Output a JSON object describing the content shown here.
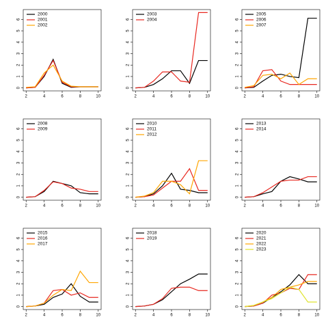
{
  "chart_data": [
    {
      "type": "line",
      "x": [
        2,
        3,
        4,
        5,
        6,
        7,
        8,
        9,
        10
      ],
      "xlim": [
        1.68,
        10.32
      ],
      "ylim": [
        -0.26,
        6.86
      ],
      "xticks": [
        2,
        4,
        6,
        8,
        10
      ],
      "yticks": [
        0,
        1,
        2,
        3,
        4,
        5,
        6
      ],
      "legend": "top-left",
      "series": [
        {
          "name": "2000",
          "color": "#000000",
          "values": [
            0,
            0.05,
            1,
            2.5,
            0.4,
            0.05,
            0.1,
            0.1,
            0.1
          ]
        },
        {
          "name": "2001",
          "color": "#e8271f",
          "values": [
            0,
            0.05,
            1.1,
            2.4,
            0.5,
            0.1,
            0.1,
            0.1,
            0.1
          ]
        },
        {
          "name": "2002",
          "color": "#ffa500",
          "values": [
            0.05,
            0.1,
            1.3,
            2.0,
            0.6,
            0.15,
            0.1,
            0.1,
            0.1
          ]
        }
      ]
    },
    {
      "type": "line",
      "x": [
        2,
        3,
        4,
        5,
        6,
        7,
        8,
        9,
        10
      ],
      "xlim": [
        1.68,
        10.32
      ],
      "ylim": [
        -0.26,
        6.86
      ],
      "xticks": [
        2,
        4,
        6,
        8,
        10
      ],
      "yticks": [
        0,
        1,
        2,
        3,
        4,
        5,
        6
      ],
      "legend": "top-left",
      "series": [
        {
          "name": "2003",
          "color": "#000000",
          "values": [
            0,
            0.05,
            0.3,
            0.8,
            1.5,
            1.5,
            0.4,
            2.4,
            2.4
          ]
        },
        {
          "name": "2004",
          "color": "#e8271f",
          "values": [
            0,
            0.05,
            0.6,
            1.4,
            1.4,
            0.6,
            0.5,
            6.6,
            6.6
          ]
        }
      ]
    },
    {
      "type": "line",
      "x": [
        2,
        3,
        4,
        5,
        6,
        7,
        8,
        9,
        10
      ],
      "xlim": [
        1.68,
        10.32
      ],
      "ylim": [
        -0.26,
        6.86
      ],
      "xticks": [
        2,
        4,
        6,
        8,
        10
      ],
      "yticks": [
        0,
        1,
        2,
        3,
        4,
        5,
        6
      ],
      "legend": "top-left",
      "series": [
        {
          "name": "2005",
          "color": "#000000",
          "values": [
            0,
            0.05,
            0.6,
            1.1,
            1.2,
            1.0,
            0.9,
            6.1,
            6.1
          ]
        },
        {
          "name": "2006",
          "color": "#e8271f",
          "values": [
            0,
            0.1,
            1.5,
            1.6,
            0.6,
            0.3,
            0.3,
            0.3,
            0.3
          ]
        },
        {
          "name": "2007",
          "color": "#ffa500",
          "values": [
            0.05,
            0.2,
            1.1,
            1.2,
            0.8,
            1.3,
            0.3,
            0.8,
            0.8
          ]
        }
      ]
    },
    {
      "type": "line",
      "x": [
        2,
        3,
        4,
        5,
        6,
        7,
        8,
        9,
        10
      ],
      "xlim": [
        1.68,
        10.32
      ],
      "ylim": [
        -0.26,
        6.86
      ],
      "xticks": [
        2,
        4,
        6,
        8,
        10
      ],
      "yticks": [
        0,
        1,
        2,
        3,
        4,
        5,
        6
      ],
      "legend": "top-left",
      "series": [
        {
          "name": "2008",
          "color": "#000000",
          "values": [
            0,
            0.05,
            0.5,
            1.4,
            1.2,
            1.0,
            0.4,
            0.3,
            0.3
          ]
        },
        {
          "name": "2009",
          "color": "#e8271f",
          "values": [
            0,
            0.05,
            0.6,
            1.35,
            1.2,
            0.8,
            0.7,
            0.5,
            0.5
          ]
        }
      ]
    },
    {
      "type": "line",
      "x": [
        2,
        3,
        4,
        5,
        6,
        7,
        8,
        9,
        10
      ],
      "xlim": [
        1.68,
        10.32
      ],
      "ylim": [
        -0.26,
        6.86
      ],
      "xticks": [
        2,
        4,
        6,
        8,
        10
      ],
      "yticks": [
        0,
        1,
        2,
        3,
        4,
        5,
        6
      ],
      "legend": "top-left",
      "series": [
        {
          "name": "2010",
          "color": "#000000",
          "values": [
            0,
            0.05,
            0.3,
            1.0,
            2.1,
            0.7,
            0.6,
            0.4,
            0.4
          ]
        },
        {
          "name": "2011",
          "color": "#e8271f",
          "values": [
            0,
            0.05,
            0.2,
            0.8,
            1.4,
            1.4,
            2.5,
            0.6,
            0.6
          ]
        },
        {
          "name": "2012",
          "color": "#ffa500",
          "values": [
            0,
            0.1,
            0.4,
            1.4,
            1.4,
            1.1,
            0.3,
            3.2,
            3.2
          ]
        }
      ]
    },
    {
      "type": "line",
      "x": [
        2,
        3,
        4,
        5,
        6,
        7,
        8,
        9,
        10
      ],
      "xlim": [
        1.68,
        10.32
      ],
      "ylim": [
        -0.26,
        6.86
      ],
      "xticks": [
        2,
        4,
        6,
        8,
        10
      ],
      "yticks": [
        0,
        1,
        2,
        3,
        4,
        5,
        6
      ],
      "legend": "top-left",
      "series": [
        {
          "name": "2013",
          "color": "#000000",
          "values": [
            0,
            0.05,
            0.3,
            0.5,
            1.4,
            1.8,
            1.6,
            1.35,
            1.35
          ]
        },
        {
          "name": "2014",
          "color": "#e8271f",
          "values": [
            0,
            0.05,
            0.4,
            0.9,
            1.4,
            1.5,
            1.5,
            1.8,
            1.8
          ]
        }
      ]
    },
    {
      "type": "line",
      "x": [
        2,
        3,
        4,
        5,
        6,
        7,
        8,
        9,
        10
      ],
      "xlim": [
        1.68,
        10.32
      ],
      "ylim": [
        -0.26,
        6.86
      ],
      "xticks": [
        2,
        4,
        6,
        8,
        10
      ],
      "yticks": [
        0,
        1,
        2,
        3,
        4,
        5,
        6
      ],
      "legend": "top-left",
      "series": [
        {
          "name": "2015",
          "color": "#000000",
          "values": [
            0,
            0.05,
            0.2,
            0.8,
            1.1,
            2.0,
            0.9,
            0.4,
            0.4
          ]
        },
        {
          "name": "2016",
          "color": "#e8271f",
          "values": [
            0,
            0.05,
            0.3,
            1.4,
            1.5,
            1.0,
            1.2,
            0.8,
            0.8
          ]
        },
        {
          "name": "2017",
          "color": "#ffa500",
          "values": [
            0,
            0.05,
            0.3,
            1.0,
            1.5,
            1.4,
            3.1,
            2.1,
            2.1
          ]
        }
      ]
    },
    {
      "type": "line",
      "x": [
        2,
        3,
        4,
        5,
        6,
        7,
        8,
        9,
        10
      ],
      "xlim": [
        1.68,
        10.32
      ],
      "ylim": [
        -0.26,
        6.86
      ],
      "xticks": [
        2,
        4,
        6,
        8,
        10
      ],
      "yticks": [
        0,
        1,
        2,
        3,
        4,
        5,
        6
      ],
      "legend": "top-left",
      "series": [
        {
          "name": "2018",
          "color": "#000000",
          "values": [
            0,
            0.05,
            0.2,
            0.6,
            1.3,
            2.0,
            2.4,
            2.85,
            2.85
          ]
        },
        {
          "name": "2019",
          "color": "#e8271f",
          "values": [
            0,
            0.05,
            0.2,
            0.7,
            1.6,
            1.7,
            1.7,
            1.4,
            1.4
          ]
        }
      ]
    },
    {
      "type": "line",
      "x": [
        2,
        3,
        4,
        5,
        6,
        7,
        8,
        9,
        10
      ],
      "xlim": [
        1.68,
        10.32
      ],
      "ylim": [
        -0.26,
        6.86
      ],
      "xticks": [
        2,
        4,
        6,
        8,
        10
      ],
      "yticks": [
        0,
        1,
        2,
        3,
        4,
        5,
        6
      ],
      "legend": "top-left",
      "series": [
        {
          "name": "2020",
          "color": "#000000",
          "values": [
            0,
            0.05,
            0.3,
            0.8,
            1.3,
            1.9,
            2.8,
            2.0,
            2.0
          ]
        },
        {
          "name": "2021",
          "color": "#e8271f",
          "values": [
            0,
            0.05,
            0.3,
            1.0,
            1.2,
            1.6,
            1.5,
            2.8,
            2.8
          ]
        },
        {
          "name": "2022",
          "color": "#ffa500",
          "values": [
            0,
            0.1,
            0.4,
            0.8,
            1.5,
            1.7,
            1.9,
            2.2,
            2.2
          ]
        },
        {
          "name": "2023",
          "color": "#dfe32d",
          "values": [
            0,
            0.1,
            0.4,
            0.7,
            1.2,
            1.7,
            1.5,
            0.4,
            0.4
          ]
        }
      ]
    }
  ]
}
